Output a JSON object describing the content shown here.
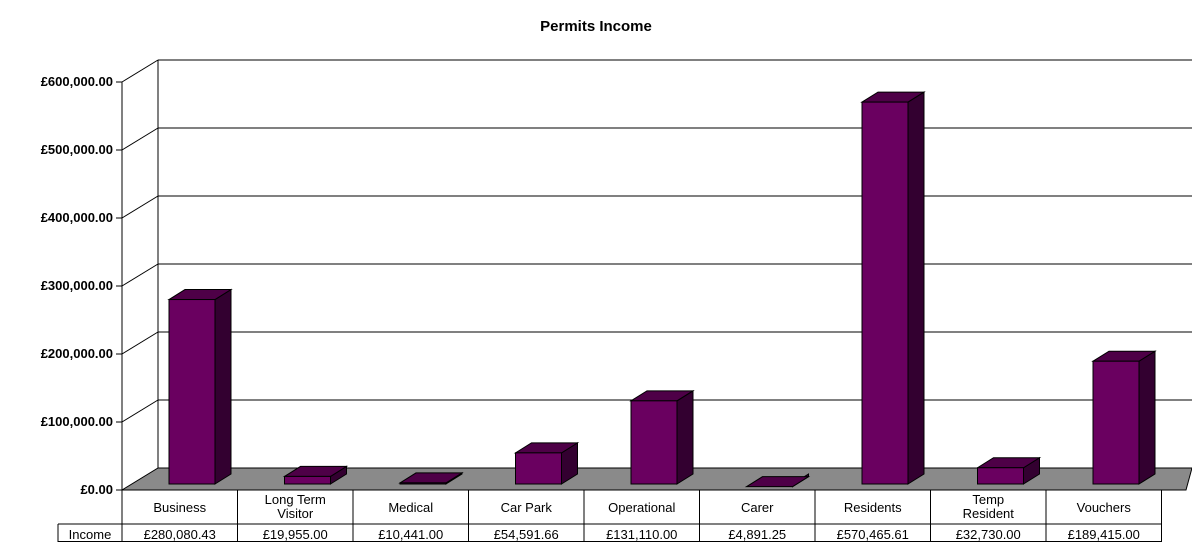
{
  "chart_data": {
    "type": "bar",
    "title": "Permits Income",
    "xlabel": "",
    "ylabel": "",
    "ylim": [
      0,
      600000
    ],
    "yticks": [
      "£0.00",
      "£100,000.00",
      "£200,000.00",
      "£300,000.00",
      "£400,000.00",
      "£500,000.00",
      "£600,000.00"
    ],
    "categories": [
      [
        "Business"
      ],
      [
        "Long Term",
        "Visitor"
      ],
      [
        "Medical"
      ],
      [
        "Car Park"
      ],
      [
        "Operational"
      ],
      [
        "Carer"
      ],
      [
        "Residents"
      ],
      [
        "Temp",
        "Resident"
      ],
      [
        "Vouchers"
      ]
    ],
    "series": [
      {
        "name": "Income",
        "values": [
          280080.43,
          19955.0,
          10441.0,
          54591.66,
          131110.0,
          4891.25,
          570465.61,
          32730.0,
          189415.0
        ],
        "labels": [
          "£280,080.43",
          "£19,955.00",
          "£10,441.00",
          "£54,591.66",
          "£131,110.00",
          "£4,891.25",
          "£570,465.61",
          "£32,730.00",
          "£189,415.00"
        ]
      }
    ],
    "grid": true,
    "data_table": true,
    "colors": {
      "bar_front": "#6a0060",
      "bar_top": "#4e0047",
      "bar_side": "#330030",
      "floor": "#8a8a8a",
      "grid": "#000000"
    }
  }
}
